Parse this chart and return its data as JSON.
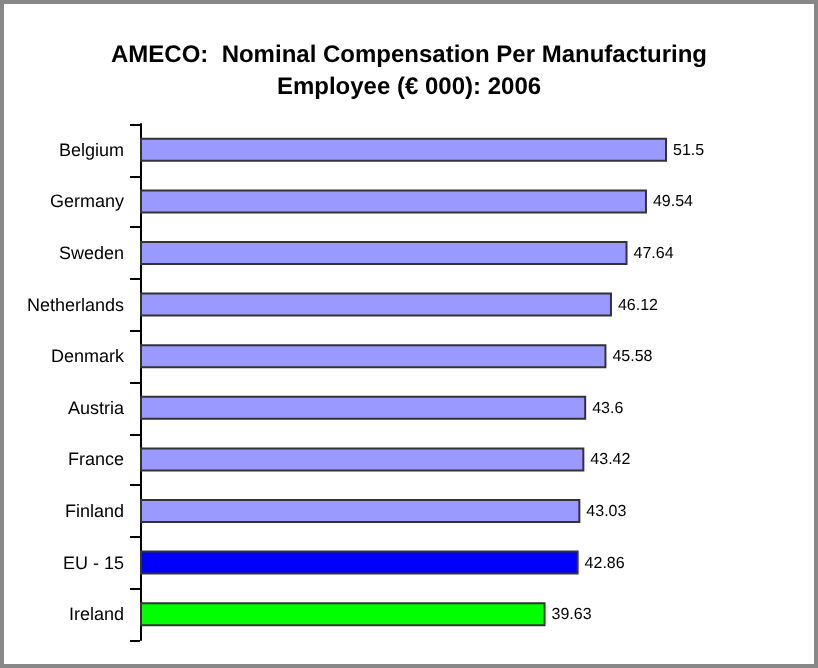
{
  "chart_data": {
    "type": "bar",
    "orientation": "horizontal",
    "title": "AMECO:  Nominal Compensation Per Manufacturing\nEmployee (€ 000): 2006",
    "categories": [
      "Belgium",
      "Germany",
      "Sweden",
      "Netherlands",
      "Denmark",
      "Austria",
      "France",
      "Finland",
      "EU - 15",
      "Ireland"
    ],
    "values": [
      51.5,
      49.54,
      47.64,
      46.12,
      45.58,
      43.6,
      43.42,
      43.03,
      42.86,
      39.63
    ],
    "colors": [
      "#9999ff",
      "#9999ff",
      "#9999ff",
      "#9999ff",
      "#9999ff",
      "#9999ff",
      "#9999ff",
      "#9999ff",
      "#0000ff",
      "#00ff00"
    ],
    "data_labels": true
  }
}
